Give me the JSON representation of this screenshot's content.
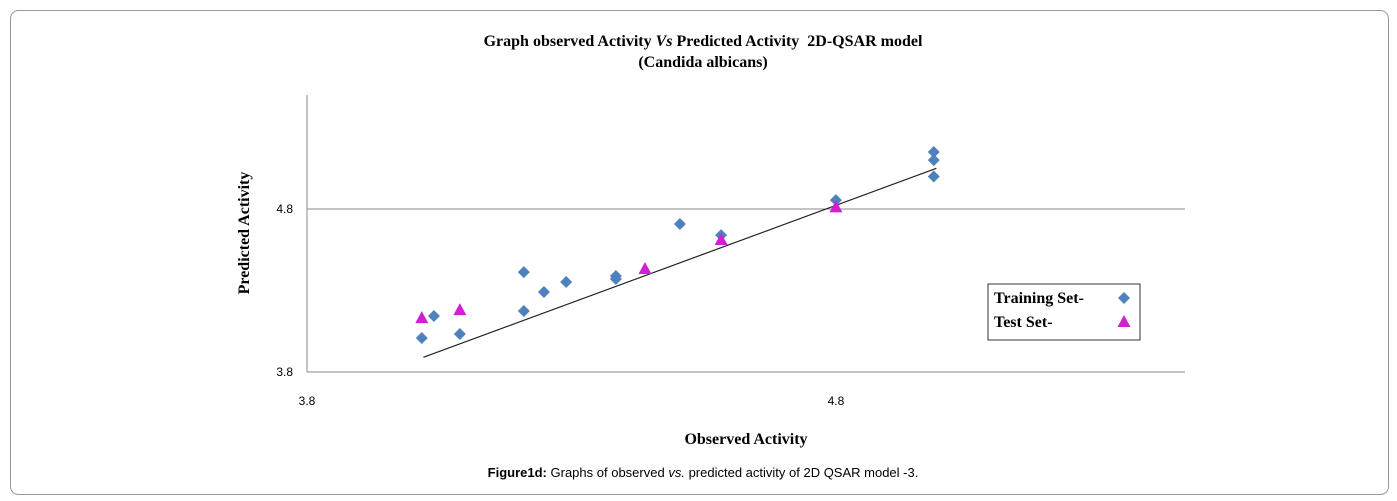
{
  "chart_data": {
    "type": "scatter",
    "title_parts": [
      "Graph observed Activity",
      "Vs",
      "Predicted Activity  2D-QSAR model"
    ],
    "subtitle": "(Candida albicans)",
    "x_label": "Observed Activity",
    "y_label": "Predicted Activity",
    "xlim": [
      3.8,
      5.46
    ],
    "ylim": [
      3.8,
      5.5
    ],
    "xticks": [
      3.8,
      4.8
    ],
    "yticks": [
      3.8,
      4.8
    ],
    "grid": true,
    "series": [
      {
        "name": "Training Set-",
        "color": "#4f81bd",
        "marker": "diamond",
        "x": [
          4.017,
          4.04,
          4.089,
          4.21,
          4.21,
          4.248,
          4.29,
          4.384,
          4.384,
          4.505,
          4.583,
          4.8,
          4.985,
          4.985,
          4.985
        ],
        "values": [
          4.009,
          4.144,
          4.033,
          4.174,
          4.413,
          4.291,
          4.352,
          4.389,
          4.371,
          4.708,
          4.64,
          4.855,
          5.15,
          5.1,
          5.0
        ]
      },
      {
        "name": "Test Set-",
        "color": "#d21fd2",
        "marker": "triangle",
        "x": [
          4.017,
          4.089,
          4.439,
          4.583,
          4.8
        ],
        "values": [
          4.131,
          4.18,
          4.432,
          4.61,
          4.81
        ]
      }
    ],
    "trendline": {
      "x": [
        4.02,
        4.99
      ],
      "values": [
        3.89,
        5.05
      ]
    },
    "caption_parts": [
      "Figure1d:",
      "Graphs of observed",
      "vs.",
      "predicted activity of 2D QSAR model -3."
    ]
  }
}
